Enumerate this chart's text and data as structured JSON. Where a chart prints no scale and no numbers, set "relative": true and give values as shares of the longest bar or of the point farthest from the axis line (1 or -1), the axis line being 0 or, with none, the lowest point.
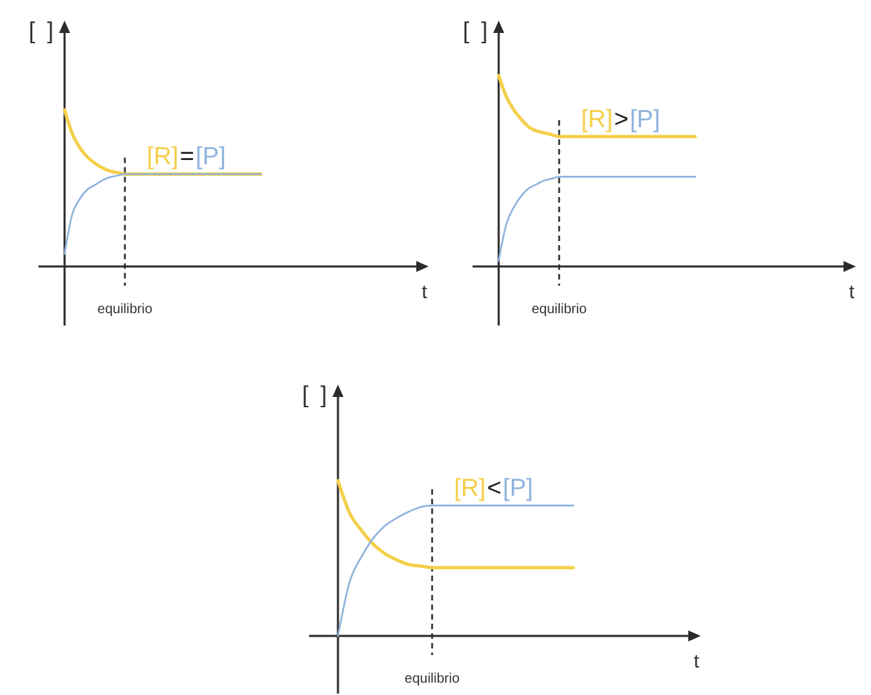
{
  "chart_data": [
    {
      "type": "line",
      "relative": true,
      "xlabel": "t",
      "ylabel": "[ ]",
      "categories": [
        null,
        null,
        null,
        null,
        null,
        null,
        null,
        null,
        null,
        null,
        null,
        null,
        null,
        null,
        null,
        null,
        null,
        null,
        null,
        null,
        null,
        null,
        null,
        null,
        null,
        null,
        null,
        null,
        null,
        null,
        null,
        null,
        null,
        null,
        null,
        null,
        null,
        null,
        null,
        null,
        null,
        null,
        null,
        null,
        null,
        null,
        null,
        null
      ],
      "series": [
        {
          "name": "[R]",
          "color": "#f4cf4a",
          "values": [
            1,
            0.85,
            0.76,
            0.7,
            0.66,
            0.63,
            0.61,
            0.6,
            0.59,
            0.59,
            0.59,
            0.59,
            0.59,
            0.59,
            0.59,
            0.59,
            0.59,
            0.59,
            0.59,
            0.59,
            0.59,
            0.59,
            0.59,
            0.59,
            0.59,
            0.59,
            0.59,
            null,
            null,
            null,
            null,
            null,
            null,
            null,
            null,
            null,
            null,
            null,
            null,
            null,
            null,
            null,
            null,
            null,
            null,
            null,
            null,
            null
          ]
        },
        {
          "name": "[P]",
          "color": "#8fb4de",
          "values": [
            0.08,
            0.33,
            0.43,
            0.49,
            0.52,
            0.55,
            0.57,
            0.58,
            0.59,
            0.59,
            0.59,
            0.59,
            0.59,
            0.59,
            0.59,
            0.59,
            0.59,
            0.59,
            0.59,
            0.59,
            0.59,
            0.59,
            0.59,
            0.59,
            0.59,
            0.59,
            0.59,
            null,
            null,
            null,
            null,
            null,
            null,
            null,
            null,
            null,
            null,
            null,
            null,
            null,
            null,
            null,
            null,
            null,
            null,
            null,
            null,
            null
          ]
        }
      ],
      "annotations": [
        "=",
        "equilibrio"
      ]
    },
    {
      "type": "line",
      "relative": true,
      "xlabel": "t",
      "ylabel": "[ ]",
      "categories": [
        null,
        null,
        null,
        null,
        null,
        null,
        null,
        null,
        null,
        null,
        null,
        null,
        null,
        null,
        null,
        null,
        null,
        null,
        null,
        null,
        null,
        null,
        null,
        null,
        null,
        null,
        null,
        null,
        null,
        null,
        null,
        null,
        null,
        null,
        null,
        null,
        null,
        null,
        null,
        null,
        null,
        null,
        null,
        null,
        null,
        null,
        null
      ],
      "series": [
        {
          "name": "[R]",
          "color": "#f4cf4a",
          "values": [
            1,
            0.89,
            0.82,
            0.77,
            0.73,
            0.71,
            0.7,
            0.69,
            0.68,
            0.68,
            0.68,
            0.68,
            0.68,
            0.68,
            0.68,
            0.68,
            0.68,
            0.68,
            0.68,
            0.68,
            0.68,
            0.68,
            0.68,
            0.68,
            0.68,
            0.68,
            0.68,
            null,
            null,
            null,
            null,
            null,
            null,
            null,
            null,
            null,
            null,
            null,
            null,
            null,
            null,
            null,
            null,
            null,
            null,
            null,
            null
          ]
        },
        {
          "name": "[P]",
          "color": "#8fb4de",
          "values": [
            0.03,
            0.22,
            0.31,
            0.37,
            0.41,
            0.43,
            0.45,
            0.46,
            0.47,
            0.47,
            0.47,
            0.47,
            0.47,
            0.47,
            0.47,
            0.47,
            0.47,
            0.47,
            0.47,
            0.47,
            0.47,
            0.47,
            0.47,
            0.47,
            0.47,
            0.47,
            0.47,
            null,
            null,
            null,
            null,
            null,
            null,
            null,
            null,
            null,
            null,
            null,
            null,
            null,
            null,
            null,
            null,
            null,
            null,
            null,
            null
          ]
        }
      ],
      "annotations": [
        ">",
        "equilibrio"
      ]
    },
    {
      "type": "line",
      "relative": true,
      "xlabel": "t",
      "ylabel": "[ ]",
      "categories": [
        null,
        null,
        null,
        null,
        null,
        null,
        null,
        null,
        null,
        null,
        null,
        null,
        null,
        null,
        null,
        null,
        null,
        null,
        null,
        null,
        null,
        null,
        null,
        null,
        null,
        null,
        null,
        null,
        null,
        null,
        null
      ],
      "series": [
        {
          "name": "[R]",
          "color": "#f4cf4a",
          "values": [
            1,
            0.79,
            0.68,
            0.59,
            0.53,
            0.49,
            0.46,
            0.45,
            0.44,
            0.44,
            0.44,
            0.44,
            0.44,
            0.44,
            0.44,
            0.44,
            0.44,
            0.44,
            0.44,
            0.44,
            0.44,
            null,
            null,
            null,
            null,
            null,
            null,
            null,
            null,
            null,
            null
          ]
        },
        {
          "name": "[P]",
          "color": "#8fb4de",
          "values": [
            0,
            0.35,
            0.51,
            0.63,
            0.71,
            0.76,
            0.8,
            0.83,
            0.84,
            0.84,
            0.84,
            0.84,
            0.84,
            0.84,
            0.84,
            0.84,
            0.84,
            0.84,
            0.84,
            0.84,
            0.84,
            null,
            null,
            null,
            null,
            null,
            null,
            null,
            null,
            null,
            null
          ]
        }
      ],
      "annotations": [
        "<",
        "equilibrio"
      ]
    }
  ]
}
